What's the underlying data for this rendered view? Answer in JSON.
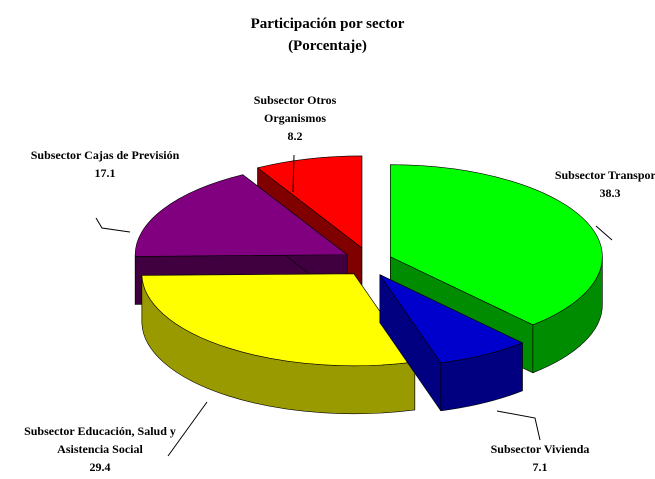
{
  "chart_data": {
    "type": "pie",
    "title": "Participación por sector",
    "subtitle": "(Porcentaje)",
    "categories": [
      "Subsector Transporte",
      "Subsector Vivienda",
      "Subsector Educación, Salud y Asistencia Social",
      "Subsector Cajas de Previsión",
      "Subsector Otros Organismos"
    ],
    "values": [
      38.3,
      7.1,
      29.4,
      17.1,
      8.2
    ],
    "colors": [
      "#00ff00",
      "#0000cc",
      "#ffff00",
      "#800080",
      "#ff0000"
    ],
    "side_colors": [
      "#008c00",
      "#000080",
      "#999900",
      "#400040",
      "#800000"
    ]
  }
}
